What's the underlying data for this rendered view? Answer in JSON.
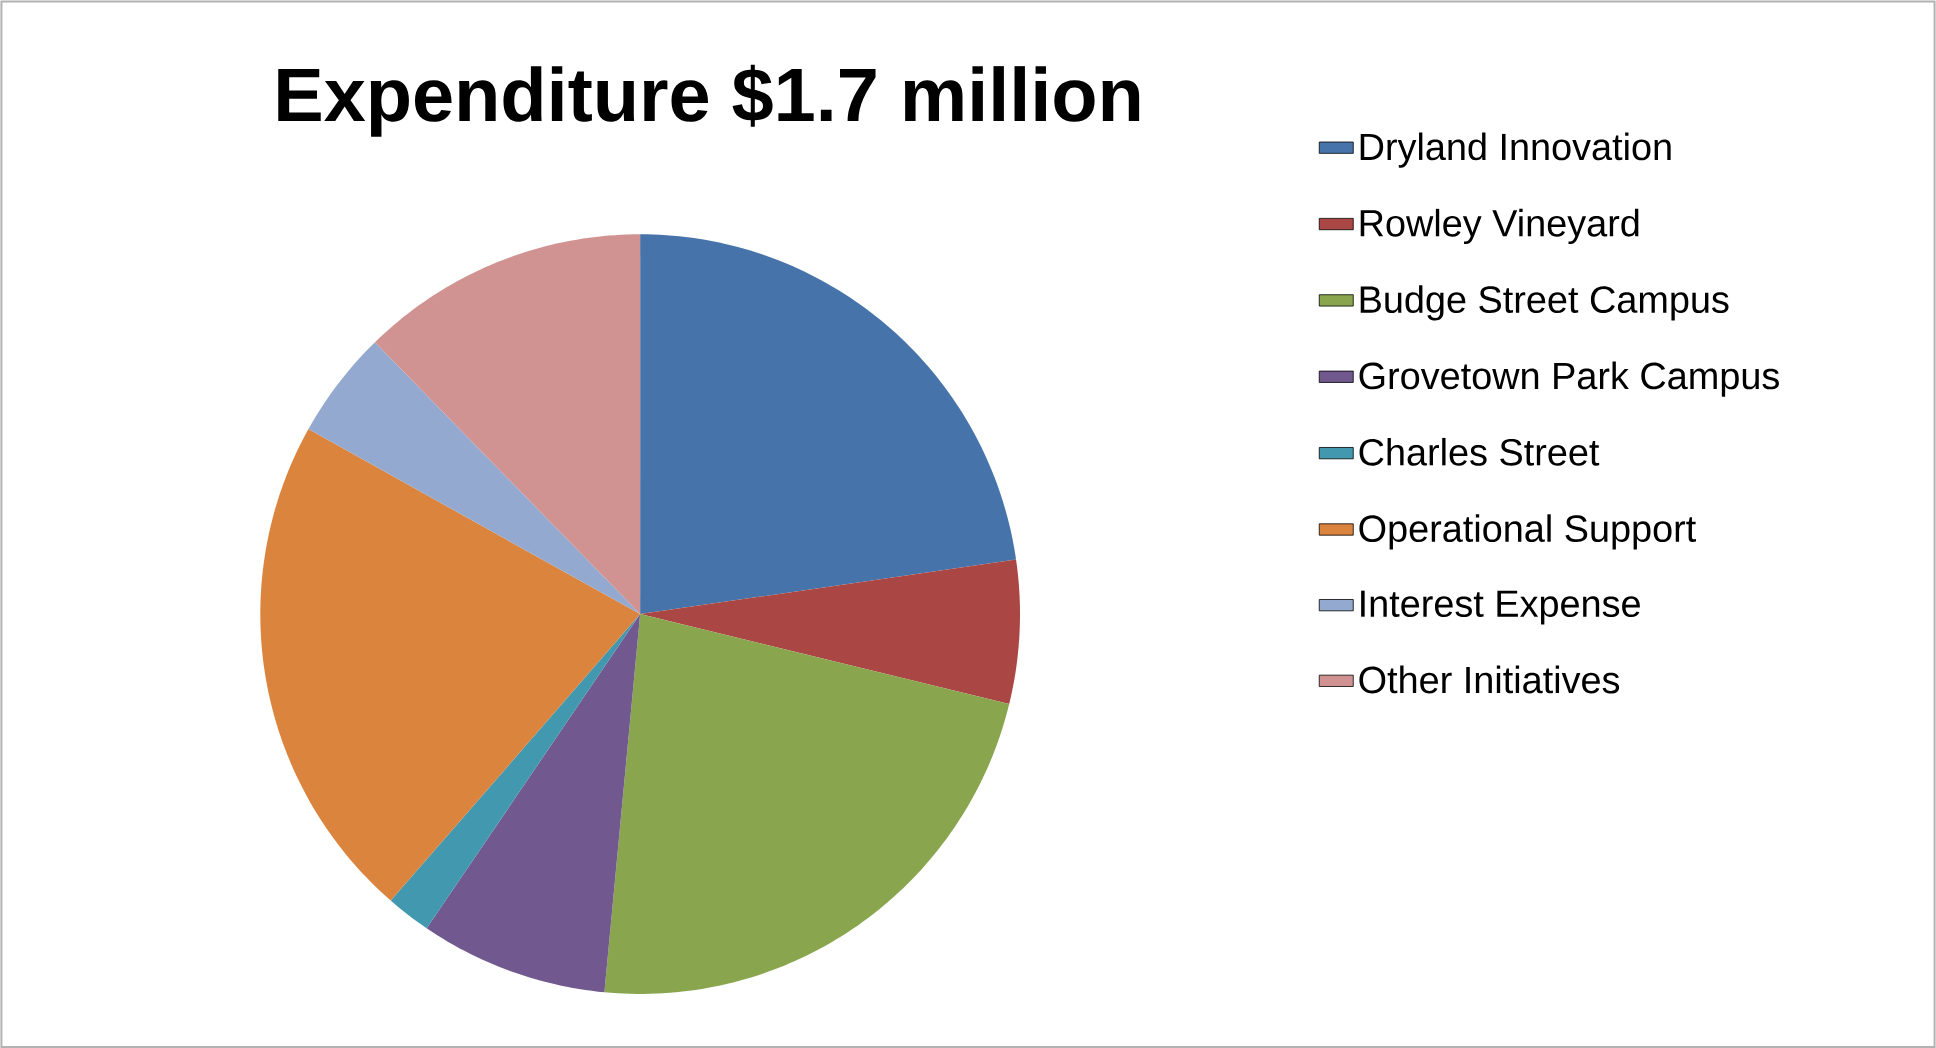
{
  "chart_data": {
    "type": "pie",
    "title": "Expenditure $1.7 million",
    "categories": [
      "Dryland Innovation",
      "Rowley Vineyard",
      "Budge Street Campus",
      "Grovetown Park Campus",
      "Charles Street",
      "Operational Support",
      "Interest Expense",
      "Other Initiatives"
    ],
    "values": [
      22.7,
      6.1,
      22.7,
      8.0,
      1.9,
      21.7,
      4.6,
      12.3
    ],
    "colors": [
      "#4674aa",
      "#aa4643",
      "#89a54e",
      "#71588f",
      "#4198af",
      "#db843d",
      "#93a9cf",
      "#d19392"
    ],
    "legend": "right"
  }
}
